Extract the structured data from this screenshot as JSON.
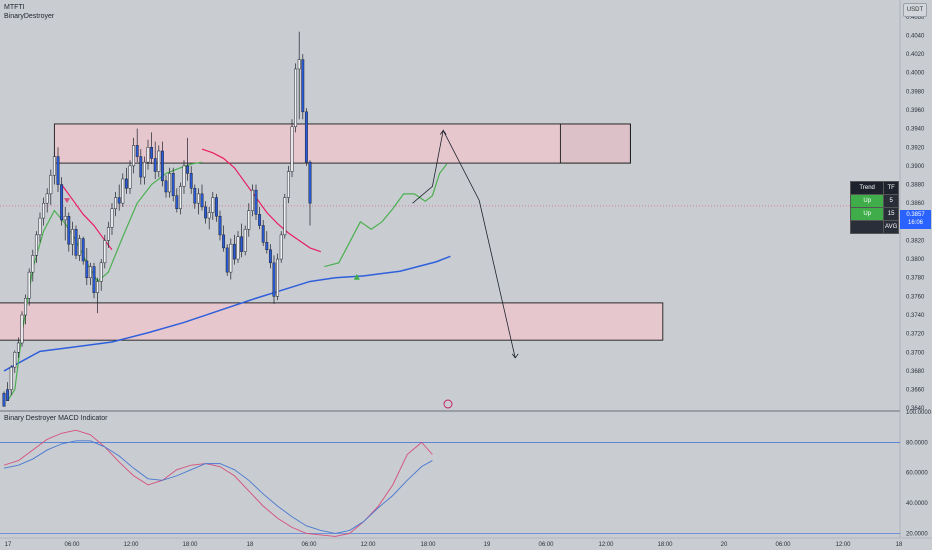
{
  "header": {
    "symbol": "MTFTI",
    "author": "BinaryDestroyer",
    "currency": "USDT"
  },
  "chart_data": [
    {
      "type": "candlestick",
      "name": "price",
      "y_axis": {
        "ticks": [
          0.406,
          0.404,
          0.402,
          0.4,
          0.398,
          0.396,
          0.394,
          0.392,
          0.39,
          0.388,
          0.386,
          0.384,
          0.382,
          0.38,
          0.378,
          0.376,
          0.374,
          0.372,
          0.37,
          0.368,
          0.366,
          0.364
        ],
        "range": [
          0.3637,
          0.4078
        ]
      },
      "x_axis": {
        "ticks": [
          "17",
          "06:00",
          "12:00",
          "18:00",
          "18",
          "06:00",
          "12:00",
          "18:00",
          "19",
          "06:00",
          "12:00",
          "18:00",
          "20",
          "06:00",
          "12:00",
          "18"
        ]
      },
      "candles": [
        [
          0.3656,
          0.3658,
          0.3646,
          0.3642
        ],
        [
          0.366,
          0.3668,
          0.3652,
          0.3648
        ],
        [
          0.366,
          0.3686,
          0.3654,
          0.3684
        ],
        [
          0.3684,
          0.3702,
          0.3678,
          0.37
        ],
        [
          0.37,
          0.3716,
          0.3694,
          0.371
        ],
        [
          0.371,
          0.3744,
          0.3706,
          0.374
        ],
        [
          0.374,
          0.3762,
          0.373,
          0.3758
        ],
        [
          0.3758,
          0.379,
          0.375,
          0.3786
        ],
        [
          0.3786,
          0.381,
          0.3776,
          0.3804
        ],
        [
          0.3804,
          0.383,
          0.3796,
          0.3826
        ],
        [
          0.3826,
          0.385,
          0.3818,
          0.3844
        ],
        [
          0.3844,
          0.3866,
          0.3836,
          0.386
        ],
        [
          0.386,
          0.3876,
          0.385,
          0.387
        ],
        [
          0.387,
          0.3896,
          0.3858,
          0.389
        ],
        [
          0.389,
          0.3916,
          0.388,
          0.391
        ],
        [
          0.391,
          0.392,
          0.3872,
          0.388
        ],
        [
          0.388,
          0.3888,
          0.3836,
          0.3842
        ],
        [
          0.3842,
          0.3856,
          0.382,
          0.3846
        ],
        [
          0.3846,
          0.385,
          0.3808,
          0.3816
        ],
        [
          0.3816,
          0.384,
          0.3804,
          0.3832
        ],
        [
          0.3832,
          0.3836,
          0.38,
          0.3804
        ],
        [
          0.3804,
          0.3826,
          0.3798,
          0.3822
        ],
        [
          0.3822,
          0.3824,
          0.3794,
          0.3798
        ],
        [
          0.3798,
          0.3812,
          0.3772,
          0.378
        ],
        [
          0.378,
          0.3796,
          0.3772,
          0.3792
        ],
        [
          0.3792,
          0.3796,
          0.3758,
          0.3764
        ],
        [
          0.3764,
          0.378,
          0.3742,
          0.3776
        ],
        [
          0.3776,
          0.38,
          0.3766,
          0.3796
        ],
        [
          0.3796,
          0.3826,
          0.379,
          0.382
        ],
        [
          0.382,
          0.384,
          0.3812,
          0.3834
        ],
        [
          0.3834,
          0.386,
          0.3826,
          0.3854
        ],
        [
          0.3854,
          0.3872,
          0.3846,
          0.3866
        ],
        [
          0.3866,
          0.388,
          0.3852,
          0.386
        ],
        [
          0.386,
          0.3892,
          0.3856,
          0.3886
        ],
        [
          0.3886,
          0.3898,
          0.387,
          0.3876
        ],
        [
          0.3876,
          0.3906,
          0.387,
          0.39
        ],
        [
          0.39,
          0.393,
          0.3892,
          0.3922
        ],
        [
          0.3922,
          0.394,
          0.3904,
          0.391
        ],
        [
          0.391,
          0.3918,
          0.388,
          0.3888
        ],
        [
          0.3888,
          0.391,
          0.388,
          0.3904
        ],
        [
          0.3904,
          0.3928,
          0.3896,
          0.392
        ],
        [
          0.392,
          0.3936,
          0.3902,
          0.3908
        ],
        [
          0.3908,
          0.3926,
          0.3886,
          0.3894
        ],
        [
          0.3894,
          0.3922,
          0.3888,
          0.3916
        ],
        [
          0.3916,
          0.3926,
          0.3878,
          0.3884
        ],
        [
          0.3884,
          0.389,
          0.3866,
          0.3872
        ],
        [
          0.3872,
          0.3898,
          0.3866,
          0.3892
        ],
        [
          0.3892,
          0.3898,
          0.3862,
          0.3868
        ],
        [
          0.3868,
          0.3876,
          0.385,
          0.3854
        ],
        [
          0.3854,
          0.3882,
          0.3848,
          0.3878
        ],
        [
          0.3878,
          0.3906,
          0.387,
          0.39
        ],
        [
          0.39,
          0.393,
          0.3884,
          0.3892
        ],
        [
          0.3892,
          0.39,
          0.387,
          0.3876
        ],
        [
          0.3876,
          0.388,
          0.3854,
          0.386
        ],
        [
          0.386,
          0.3876,
          0.3848,
          0.387
        ],
        [
          0.387,
          0.388,
          0.3852,
          0.3856
        ],
        [
          0.3856,
          0.3862,
          0.3838,
          0.3844
        ],
        [
          0.3844,
          0.3856,
          0.3832,
          0.385
        ],
        [
          0.385,
          0.3872,
          0.3842,
          0.3866
        ],
        [
          0.3866,
          0.387,
          0.384,
          0.3846
        ],
        [
          0.3846,
          0.3852,
          0.382,
          0.3826
        ],
        [
          0.3826,
          0.3836,
          0.3808,
          0.3812
        ],
        [
          0.3812,
          0.3816,
          0.3782,
          0.3786
        ],
        [
          0.3786,
          0.3822,
          0.3778,
          0.3816
        ],
        [
          0.3816,
          0.3826,
          0.3794,
          0.38
        ],
        [
          0.38,
          0.383,
          0.3796,
          0.3824
        ],
        [
          0.3824,
          0.3838,
          0.3802,
          0.3808
        ],
        [
          0.3808,
          0.3836,
          0.3804,
          0.3832
        ],
        [
          0.3832,
          0.386,
          0.3824,
          0.3852
        ],
        [
          0.3852,
          0.388,
          0.3846,
          0.3874
        ],
        [
          0.3874,
          0.388,
          0.3842,
          0.3848
        ],
        [
          0.3848,
          0.3856,
          0.3832,
          0.3836
        ],
        [
          0.3836,
          0.3842,
          0.3814,
          0.3818
        ],
        [
          0.3818,
          0.383,
          0.3806,
          0.381
        ],
        [
          0.381,
          0.3816,
          0.379,
          0.3796
        ],
        [
          0.3796,
          0.3804,
          0.3752,
          0.376
        ],
        [
          0.376,
          0.3806,
          0.3756,
          0.38
        ],
        [
          0.38,
          0.383,
          0.3796,
          0.3826
        ],
        [
          0.3826,
          0.387,
          0.3822,
          0.3866
        ],
        [
          0.3866,
          0.39,
          0.386,
          0.3894
        ],
        [
          0.3894,
          0.395,
          0.3888,
          0.3942
        ],
        [
          0.3942,
          0.401,
          0.3936,
          0.4004
        ],
        [
          0.4004,
          0.4044,
          0.395,
          0.4014
        ],
        [
          0.4014,
          0.402,
          0.395,
          0.3958
        ],
        [
          0.3958,
          0.3962,
          0.39,
          0.3904
        ],
        [
          0.3904,
          0.3906,
          0.3836,
          0.386
        ]
      ],
      "moving_average_blue": [
        [
          0,
          0.368
        ],
        [
          10,
          0.3701
        ],
        [
          20,
          0.3706
        ],
        [
          30,
          0.3711
        ],
        [
          40,
          0.3721
        ],
        [
          50,
          0.3732
        ],
        [
          60,
          0.3745
        ],
        [
          70,
          0.3758
        ],
        [
          80,
          0.377
        ],
        [
          85,
          0.3776
        ],
        [
          92,
          0.378
        ],
        [
          100,
          0.3782
        ],
        [
          110,
          0.3787
        ],
        [
          120,
          0.3797
        ],
        [
          124,
          0.3803
        ]
      ],
      "supertrend_segments": [
        {
          "color": "#4caf50",
          "points": [
            [
              1,
              0.3648
            ],
            [
              3,
              0.366
            ],
            [
              5,
              0.372
            ],
            [
              8,
              0.379
            ],
            [
              11,
              0.383
            ],
            [
              14,
              0.3852
            ],
            [
              17,
              0.3838
            ],
            [
              20,
              0.382
            ],
            [
              23,
              0.3796
            ],
            [
              26,
              0.3776
            ],
            [
              29,
              0.3786
            ],
            [
              33,
              0.3824
            ],
            [
              37,
              0.386
            ],
            [
              41,
              0.388
            ],
            [
              45,
              0.3892
            ],
            [
              49,
              0.3898
            ],
            [
              52,
              0.3902
            ],
            [
              55,
              0.3904
            ]
          ]
        },
        {
          "color": "#e91e63",
          "points": [
            [
              16,
              0.388
            ],
            [
              19,
              0.3864
            ],
            [
              22,
              0.3848
            ],
            [
              25,
              0.3836
            ],
            [
              28,
              0.382
            ],
            [
              30,
              0.381
            ]
          ]
        },
        {
          "color": "#e91e63",
          "points": [
            [
              55,
              0.3918
            ],
            [
              58,
              0.3914
            ],
            [
              61,
              0.3908
            ],
            [
              64,
              0.3898
            ],
            [
              67,
              0.3882
            ],
            [
              70,
              0.3866
            ],
            [
              73,
              0.385
            ],
            [
              76,
              0.3838
            ],
            [
              79,
              0.3828
            ],
            [
              82,
              0.382
            ],
            [
              85,
              0.3812
            ],
            [
              88,
              0.3808
            ]
          ]
        },
        {
          "color": "#4caf50",
          "points": [
            [
              89,
              0.3792
            ],
            [
              93,
              0.3796
            ],
            [
              96,
              0.3818
            ],
            [
              99,
              0.384
            ],
            [
              102,
              0.3832
            ],
            [
              105,
              0.384
            ],
            [
              108,
              0.3854
            ],
            [
              111,
              0.387
            ],
            [
              114,
              0.387
            ],
            [
              117,
              0.3862
            ],
            [
              119,
              0.3868
            ],
            [
              121,
              0.3892
            ],
            [
              123,
              0.3902
            ]
          ]
        }
      ],
      "zones": [
        {
          "x0": 14,
          "x1": 174,
          "y_top": 0.3945,
          "y_bottom": 0.3903
        },
        {
          "x0": -3,
          "x1": 183,
          "y_top": 0.3753,
          "y_bottom": 0.3713
        }
      ],
      "current_price": {
        "value": "0.3857",
        "countdown": "16:06"
      },
      "projection_path": [
        [
          113.5,
          0.386
        ],
        [
          119,
          0.3878
        ],
        [
          122,
          0.3938
        ],
        [
          132,
          0.3863
        ],
        [
          142,
          0.3694
        ]
      ]
    },
    {
      "type": "line",
      "name": "Binary Destroyer MACD Indicator",
      "y_axis": {
        "ticks": [
          100.0,
          80.0,
          60.0,
          40.0,
          20.0
        ],
        "range": [
          17,
          100
        ],
        "levels": [
          80,
          20
        ]
      },
      "series": [
        {
          "color": "#d5507a",
          "points": [
            [
              0,
              65
            ],
            [
              4,
              68
            ],
            [
              8,
              75
            ],
            [
              12,
              82
            ],
            [
              16,
              86
            ],
            [
              20,
              88
            ],
            [
              24,
              85
            ],
            [
              28,
              77
            ],
            [
              32,
              67
            ],
            [
              36,
              58
            ],
            [
              40,
              52
            ],
            [
              44,
              55
            ],
            [
              48,
              62
            ],
            [
              52,
              65
            ],
            [
              56,
              66
            ],
            [
              60,
              64
            ],
            [
              64,
              58
            ],
            [
              68,
              48
            ],
            [
              72,
              38
            ],
            [
              76,
              30
            ],
            [
              80,
              24
            ],
            [
              84,
              20
            ],
            [
              88,
              19
            ],
            [
              92,
              18
            ],
            [
              96,
              20
            ],
            [
              100,
              28
            ],
            [
              104,
              38
            ],
            [
              108,
              52
            ],
            [
              112,
              72
            ],
            [
              116,
              80
            ],
            [
              119,
              72
            ]
          ]
        },
        {
          "color": "#4a78d0",
          "points": [
            [
              0,
              63
            ],
            [
              4,
              65
            ],
            [
              8,
              69
            ],
            [
              12,
              75
            ],
            [
              16,
              79
            ],
            [
              20,
              81
            ],
            [
              24,
              81
            ],
            [
              28,
              77
            ],
            [
              32,
              71
            ],
            [
              36,
              63
            ],
            [
              40,
              56
            ],
            [
              44,
              55
            ],
            [
              48,
              58
            ],
            [
              52,
              62
            ],
            [
              56,
              66
            ],
            [
              60,
              66
            ],
            [
              64,
              62
            ],
            [
              68,
              55
            ],
            [
              72,
              46
            ],
            [
              76,
              38
            ],
            [
              80,
              31
            ],
            [
              84,
              25
            ],
            [
              88,
              22
            ],
            [
              92,
              20
            ],
            [
              96,
              22
            ],
            [
              100,
              28
            ],
            [
              104,
              37
            ],
            [
              108,
              45
            ],
            [
              112,
              55
            ],
            [
              116,
              64
            ],
            [
              119,
              68
            ]
          ]
        }
      ]
    }
  ],
  "trend_panel": {
    "header": "Trend",
    "tf": "TF",
    "rows": [
      {
        "label": "Up",
        "tf": "5"
      },
      {
        "label": "Up",
        "tf": "15"
      },
      {
        "label": "",
        "tf": "AVG"
      }
    ]
  }
}
